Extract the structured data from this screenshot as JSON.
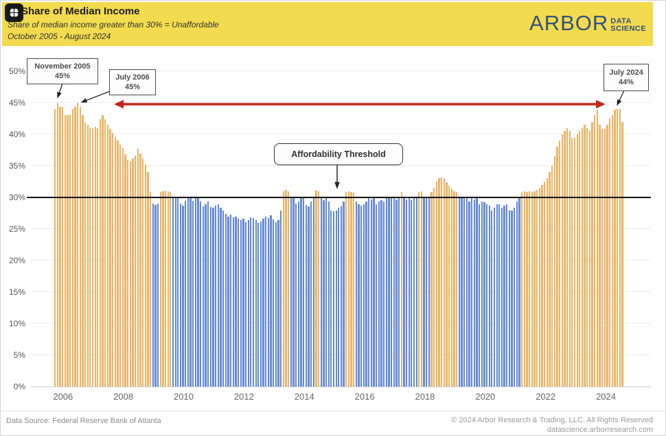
{
  "header": {
    "title": "Share of Median Income",
    "subtitle1": "Share of median income greater than 30% = Unaffordable",
    "subtitle2": "October 2005 - August 2024",
    "background_color": "#F2DB4E",
    "badge_icon": "brain-icon",
    "logo": {
      "name": "ARBOR",
      "sub_line1": "DATA",
      "sub_line2": "SCIENCE",
      "color": "#33517E"
    }
  },
  "chart_data": {
    "type": "bar",
    "title": "Share of Median Income",
    "frequency": "monthly",
    "start_month": "2005-10",
    "end_month": "2024-08",
    "ylim": [
      0,
      50
    ],
    "y_ticks": [
      "0%",
      "5%",
      "10%",
      "15%",
      "20%",
      "25%",
      "30%",
      "35%",
      "40%",
      "45%",
      "50%"
    ],
    "x_ticks": [
      {
        "label": "2006",
        "month_index": 3
      },
      {
        "label": "2008",
        "month_index": 27
      },
      {
        "label": "2010",
        "month_index": 51
      },
      {
        "label": "2012",
        "month_index": 75
      },
      {
        "label": "2014",
        "month_index": 99
      },
      {
        "label": "2016",
        "month_index": 123
      },
      {
        "label": "2018",
        "month_index": 147
      },
      {
        "label": "2020",
        "month_index": 171
      },
      {
        "label": "2022",
        "month_index": 195
      },
      {
        "label": "2024",
        "month_index": 219
      }
    ],
    "threshold": {
      "value": 30,
      "label": "Affordability Threshold"
    },
    "colors": {
      "above_threshold": "#E8A33D",
      "below_threshold": "#3A66C8",
      "threshold_line": "#111111",
      "range_arrow": "#C5281C"
    },
    "color_rule": "share > 30% = orange (unaffordable), <= 30% = blue",
    "values": [
      44.0,
      45.0,
      44.3,
      44.3,
      43.1,
      43.0,
      43.2,
      44.0,
      44.4,
      45.0,
      44.3,
      43.1,
      41.9,
      41.5,
      41.1,
      41.0,
      41.2,
      41.0,
      42.4,
      43.0,
      42.4,
      41.5,
      40.9,
      40.2,
      39.6,
      39.0,
      38.4,
      37.8,
      36.8,
      36.0,
      35.8,
      36.2,
      36.6,
      37.7,
      37.0,
      36.2,
      35.2,
      34.0,
      30.9,
      29.0,
      28.8,
      29.0,
      30.9,
      31.0,
      31.1,
      31.0,
      30.9,
      30.0,
      30.0,
      29.9,
      29.0,
      28.7,
      29.5,
      30.0,
      29.9,
      29.5,
      29.9,
      30.0,
      29.3,
      28.6,
      28.9,
      29.3,
      28.5,
      28.4,
      28.7,
      28.9,
      28.4,
      27.9,
      27.4,
      27.0,
      27.3,
      26.8,
      27.0,
      26.6,
      26.4,
      26.6,
      26.1,
      26.4,
      26.9,
      26.7,
      26.4,
      26.0,
      26.2,
      26.6,
      27.0,
      26.7,
      27.2,
      26.5,
      26.1,
      26.4,
      27.9,
      31.0,
      31.2,
      31.0,
      30.0,
      29.9,
      29.0,
      29.4,
      29.9,
      29.9,
      28.8,
      28.6,
      29.4,
      29.9,
      31.1,
      31.0,
      29.9,
      29.6,
      29.9,
      29.4,
      27.9,
      27.8,
      27.9,
      28.4,
      28.6,
      29.4,
      30.9,
      31.0,
      30.9,
      30.8,
      29.4,
      28.9,
      28.7,
      28.9,
      29.4,
      29.9,
      29.7,
      29.9,
      28.9,
      29.4,
      29.6,
      29.4,
      29.9,
      30.0,
      29.9,
      29.9,
      29.7,
      29.9,
      30.9,
      29.9,
      29.7,
      29.9,
      29.6,
      29.9,
      30.0,
      30.9,
      31.0,
      30.0,
      29.9,
      30.0,
      30.9,
      31.5,
      32.5,
      33.0,
      33.2,
      33.0,
      32.4,
      31.9,
      31.4,
      31.0,
      30.9,
      30.0,
      29.9,
      30.0,
      29.9,
      29.4,
      29.9,
      29.7,
      29.9,
      28.9,
      29.4,
      29.2,
      28.9,
      28.7,
      27.9,
      28.4,
      28.9,
      28.9,
      28.4,
      28.7,
      28.9,
      27.9,
      27.9,
      28.4,
      29.4,
      29.9,
      30.9,
      31.0,
      30.9,
      31.0,
      30.9,
      31.0,
      31.2,
      31.5,
      32.0,
      32.5,
      33.0,
      34.0,
      35.0,
      36.5,
      38.0,
      39.0,
      40.0,
      40.5,
      41.0,
      40.5,
      39.5,
      39.5,
      40.0,
      40.5,
      41.0,
      41.5,
      41.0,
      40.5,
      42.0,
      43.0,
      43.9,
      41.5,
      40.9,
      40.9,
      41.5,
      42.5,
      43.0,
      43.9,
      44.0,
      44.0,
      42.0
    ],
    "annotations": {
      "nov_2005": {
        "line1": "November 2005",
        "line2": "45%"
      },
      "jul_2006": {
        "line1": "July 2006",
        "line2": "45%"
      },
      "jul_2024": {
        "line1": "July 2024",
        "line2": "44%"
      },
      "threshold_label": "Affordability Threshold"
    }
  },
  "footer": {
    "source": "Data Source: Federal Reserve Bank of Atlanta",
    "copyright": "© 2024 Arbor Research & Trading, LLC. All Rights Reserved",
    "website": "datascience.arborresearch.com"
  }
}
